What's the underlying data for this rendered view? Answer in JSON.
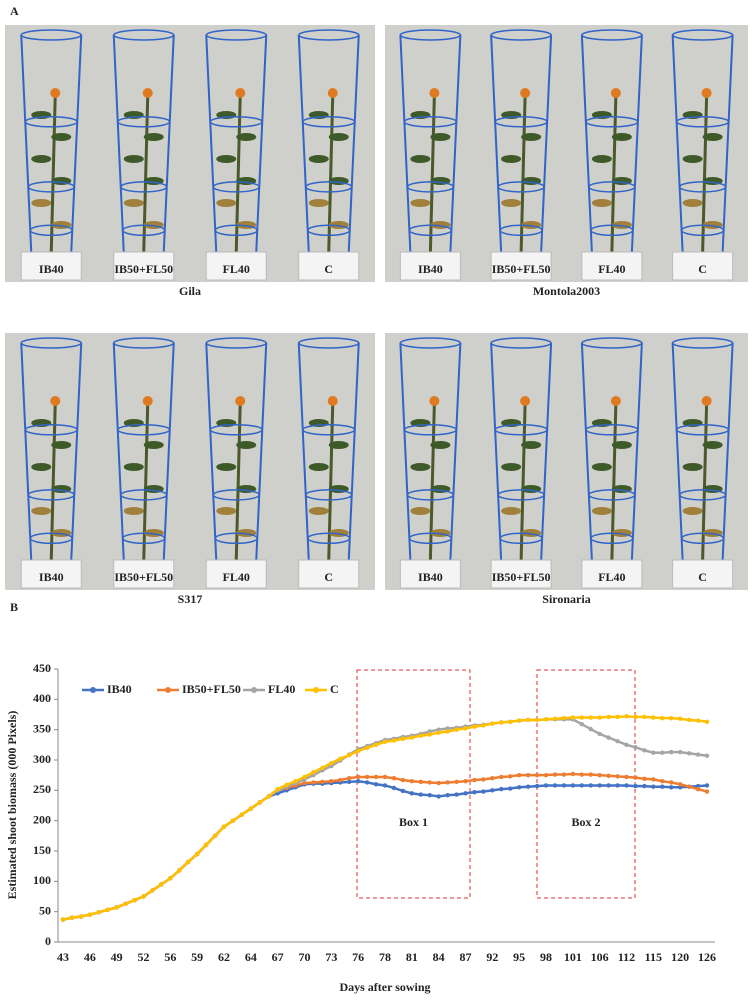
{
  "panel_a": {
    "label": "A",
    "groups": [
      {
        "name": "Gila",
        "pots": [
          "IB40",
          "IB50+FL50",
          "FL40",
          "C"
        ]
      },
      {
        "name": "Montola2003",
        "pots": [
          "IB40",
          "IB50+FL50",
          "FL40",
          "C"
        ]
      },
      {
        "name": "S317",
        "pots": [
          "IB40",
          "IB50+FL50",
          "FL40",
          "C"
        ]
      },
      {
        "name": "Sironaria",
        "pots": [
          "IB40",
          "IB50+FL50",
          "FL40",
          "C"
        ]
      }
    ]
  },
  "chart_data": {
    "type": "line",
    "label": "B",
    "x_label": "Days after sowing",
    "y_label": "Estimated shoot biomass (000 Pixels)",
    "categories": [
      "43",
      null,
      null,
      "46",
      null,
      null,
      "49",
      null,
      null,
      "52",
      null,
      null,
      "56",
      null,
      null,
      "59",
      null,
      null,
      "62",
      null,
      null,
      "64",
      null,
      null,
      "67",
      null,
      null,
      "70",
      null,
      null,
      "73",
      null,
      null,
      "76",
      null,
      null,
      "78",
      null,
      null,
      "81",
      null,
      null,
      "84",
      null,
      null,
      "87",
      null,
      null,
      "92",
      null,
      null,
      "95",
      null,
      null,
      "98",
      null,
      null,
      "101",
      null,
      null,
      "106",
      null,
      null,
      "112",
      null,
      null,
      "115",
      null,
      null,
      "120",
      null,
      null,
      "126"
    ],
    "ylim": [
      0,
      450
    ],
    "yticks": [
      0,
      50,
      100,
      150,
      200,
      250,
      300,
      350,
      400,
      450
    ],
    "legend": "top-left",
    "series": [
      {
        "name": "IB40",
        "color": "#4472c4",
        "values": [
          37,
          40,
          42,
          45,
          49,
          53,
          57,
          63,
          69,
          75,
          85,
          95,
          105,
          118,
          132,
          145,
          160,
          175,
          190,
          200,
          210,
          220,
          230,
          240,
          245,
          250,
          255,
          260,
          261,
          261,
          262,
          263,
          264,
          265,
          263,
          260,
          258,
          254,
          249,
          245,
          243,
          242,
          240,
          242,
          243,
          245,
          247,
          248,
          250,
          252,
          253,
          255,
          256,
          257,
          258,
          258,
          258,
          258,
          258,
          258,
          258,
          258,
          258,
          258,
          257,
          257,
          256,
          256,
          255,
          255,
          256,
          257,
          258
        ]
      },
      {
        "name": "IB50+FL50",
        "color": "#ed7d31",
        "values": [
          37,
          40,
          42,
          45,
          49,
          53,
          57,
          63,
          69,
          75,
          85,
          95,
          105,
          118,
          132,
          145,
          160,
          175,
          190,
          200,
          210,
          220,
          230,
          240,
          250,
          254,
          258,
          262,
          263,
          264,
          265,
          267,
          270,
          272,
          272,
          272,
          272,
          270,
          267,
          265,
          264,
          263,
          262,
          263,
          264,
          265,
          267,
          268,
          270,
          272,
          273,
          275,
          275,
          275,
          275,
          276,
          276,
          277,
          276,
          276,
          275,
          274,
          273,
          272,
          271,
          269,
          268,
          265,
          263,
          260,
          256,
          252,
          248
        ]
      },
      {
        "name": "FL40",
        "color": "#a5a5a5",
        "values": [
          37,
          40,
          42,
          45,
          49,
          53,
          57,
          63,
          69,
          75,
          85,
          95,
          105,
          118,
          132,
          145,
          160,
          175,
          190,
          200,
          210,
          220,
          230,
          240,
          250,
          256,
          262,
          268,
          275,
          283,
          290,
          299,
          309,
          318,
          323,
          328,
          333,
          335,
          338,
          340,
          343,
          347,
          350,
          352,
          353,
          355,
          357,
          358,
          360,
          362,
          363,
          365,
          366,
          366,
          367,
          367,
          367,
          367,
          359,
          351,
          343,
          337,
          331,
          325,
          321,
          316,
          312,
          312,
          313,
          313,
          311,
          309,
          307
        ]
      },
      {
        "name": "C",
        "color": "#ffc000",
        "values": [
          37,
          40,
          42,
          45,
          49,
          53,
          57,
          63,
          69,
          75,
          85,
          95,
          105,
          118,
          132,
          145,
          160,
          175,
          190,
          200,
          210,
          220,
          230,
          240,
          252,
          259,
          265,
          272,
          280,
          287,
          295,
          302,
          308,
          315,
          320,
          325,
          330,
          332,
          335,
          337,
          340,
          342,
          345,
          347,
          350,
          352,
          355,
          357,
          360,
          362,
          363,
          365,
          366,
          366,
          367,
          368,
          369,
          370,
          370,
          370,
          370,
          371,
          371,
          372,
          371,
          371,
          370,
          369,
          369,
          368,
          366,
          365,
          363
        ]
      }
    ],
    "annotations": [
      {
        "text": "Box 1"
      },
      {
        "text": "Box 2"
      }
    ]
  }
}
